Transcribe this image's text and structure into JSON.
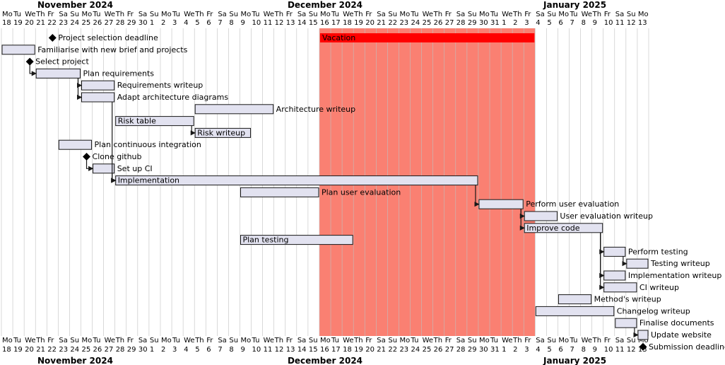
{
  "chart_data": {
    "type": "gantt",
    "start_date": "2024-11-18",
    "end_date": "2025-01-13",
    "months": [
      {
        "label": "November 2024",
        "start": "2024-11-18",
        "end": "2024-11-30"
      },
      {
        "label": "December 2024",
        "start": "2024-12-01",
        "end": "2024-12-31"
      },
      {
        "label": "January 2025",
        "start": "2025-01-01",
        "end": "2025-01-13"
      }
    ],
    "day_of_week_labels": [
      "Mo",
      "Tu",
      "We",
      "Th",
      "Fr",
      "Sa",
      "Su"
    ],
    "closed_periods": [
      {
        "label": "Vacation",
        "start": "2024-12-16",
        "end": "2025-01-03",
        "color": "#ff0000",
        "fill": "#fa8072"
      }
    ],
    "tasks": [
      {
        "id": "t1",
        "label": "Project selection deadline",
        "type": "milestone",
        "date": "2024-11-22",
        "label_inside": false
      },
      {
        "id": "t2",
        "label": "Familiarise with new brief and projects",
        "type": "task",
        "start": "2024-11-18",
        "end": "2024-11-20",
        "label_inside": false
      },
      {
        "id": "t3",
        "label": "Select project",
        "type": "milestone",
        "date": "2024-11-20",
        "label_inside": false
      },
      {
        "id": "t4",
        "label": "Plan requirements",
        "type": "task",
        "start": "2024-11-21",
        "end": "2024-11-24",
        "label_inside": false
      },
      {
        "id": "t5",
        "label": "Requirements writeup",
        "type": "task",
        "start": "2024-11-25",
        "end": "2024-11-27",
        "label_inside": false
      },
      {
        "id": "t6",
        "label": "Adapt architecture diagrams",
        "type": "task",
        "start": "2024-11-25",
        "end": "2024-11-27",
        "label_inside": false
      },
      {
        "id": "t7",
        "label": "Architecture writeup",
        "type": "task",
        "start": "2024-12-05",
        "end": "2024-12-11",
        "label_inside": false
      },
      {
        "id": "t8",
        "label": "Risk table",
        "type": "task",
        "start": "2024-11-28",
        "end": "2024-12-04",
        "label_inside": true
      },
      {
        "id": "t9",
        "label": "Risk writeup",
        "type": "task",
        "start": "2024-12-05",
        "end": "2024-12-09",
        "label_inside": true
      },
      {
        "id": "t10",
        "label": "Plan continuous integration",
        "type": "task",
        "start": "2024-11-23",
        "end": "2024-11-25",
        "label_inside": false
      },
      {
        "id": "t11",
        "label": "Clone github",
        "type": "milestone",
        "date": "2024-11-25",
        "label_inside": false
      },
      {
        "id": "t12",
        "label": "Set up CI",
        "type": "task",
        "start": "2024-11-26",
        "end": "2024-11-27",
        "label_inside": false
      },
      {
        "id": "t13",
        "label": "Implementation",
        "type": "task",
        "start": "2024-11-28",
        "end": "2024-12-29",
        "label_inside": true
      },
      {
        "id": "t14",
        "label": "Plan user evaluation",
        "type": "task",
        "start": "2024-12-09",
        "end": "2024-12-15",
        "label_inside": false
      },
      {
        "id": "t15",
        "label": "Perform user evaluation",
        "type": "task",
        "start": "2024-12-30",
        "end": "2025-01-02",
        "label_inside": false
      },
      {
        "id": "t16",
        "label": "User evaluation writeup",
        "type": "task",
        "start": "2025-01-03",
        "end": "2025-01-05",
        "label_inside": false
      },
      {
        "id": "t17",
        "label": "Improve code",
        "type": "task",
        "start": "2025-01-03",
        "end": "2025-01-09",
        "label_inside": true
      },
      {
        "id": "t18",
        "label": "Plan testing",
        "type": "task",
        "start": "2024-12-09",
        "end": "2024-12-18",
        "label_inside": true
      },
      {
        "id": "t19",
        "label": "Perform testing",
        "type": "task",
        "start": "2025-01-10",
        "end": "2025-01-11",
        "label_inside": false
      },
      {
        "id": "t20",
        "label": "Testing writeup",
        "type": "task",
        "start": "2025-01-12",
        "end": "2025-01-13",
        "label_inside": false
      },
      {
        "id": "t21",
        "label": "Implementation writeup",
        "type": "task",
        "start": "2025-01-10",
        "end": "2025-01-11",
        "label_inside": false
      },
      {
        "id": "t22",
        "label": "CI writeup",
        "type": "task",
        "start": "2025-01-10",
        "end": "2025-01-12",
        "label_inside": false
      },
      {
        "id": "t23",
        "label": "Method's writeup",
        "type": "task",
        "start": "2025-01-06",
        "end": "2025-01-08",
        "label_inside": false
      },
      {
        "id": "t24",
        "label": "Changelog writeup",
        "type": "task",
        "start": "2025-01-04",
        "end": "2025-01-10",
        "label_inside": false
      },
      {
        "id": "t25",
        "label": "Finalise documents",
        "type": "task",
        "start": "2025-01-11",
        "end": "2025-01-12",
        "label_inside": false
      },
      {
        "id": "t26",
        "label": "Update website",
        "type": "task",
        "start": "2025-01-13",
        "end": "2025-01-13",
        "label_inside": false
      },
      {
        "id": "t27",
        "label": "Submission deadline",
        "type": "milestone",
        "date": "2025-01-13",
        "label_inside": false
      }
    ],
    "dependencies": [
      {
        "from": "t3",
        "to": "t4"
      },
      {
        "from": "t4",
        "to": "t5"
      },
      {
        "from": "t4",
        "to": "t6"
      },
      {
        "from": "t6",
        "to": "t13"
      },
      {
        "from": "t8",
        "to": "t9"
      },
      {
        "from": "t11",
        "to": "t12"
      },
      {
        "from": "t12",
        "to": "t13"
      },
      {
        "from": "t13",
        "to": "t15"
      },
      {
        "from": "t15",
        "to": "t16"
      },
      {
        "from": "t15",
        "to": "t17"
      },
      {
        "from": "t17",
        "to": "t19"
      },
      {
        "from": "t17",
        "to": "t21"
      },
      {
        "from": "t17",
        "to": "t22"
      },
      {
        "from": "t19",
        "to": "t20"
      },
      {
        "from": "t25",
        "to": "t26"
      }
    ],
    "colors": {
      "task_fill": "#e2e2f0",
      "task_border": "#181818",
      "milestone": "#000000",
      "grid": "#c0c0c0",
      "arrow": "#181818",
      "vacation_fill": "#fa8072",
      "vacation_highlight": "#ff0000"
    }
  }
}
